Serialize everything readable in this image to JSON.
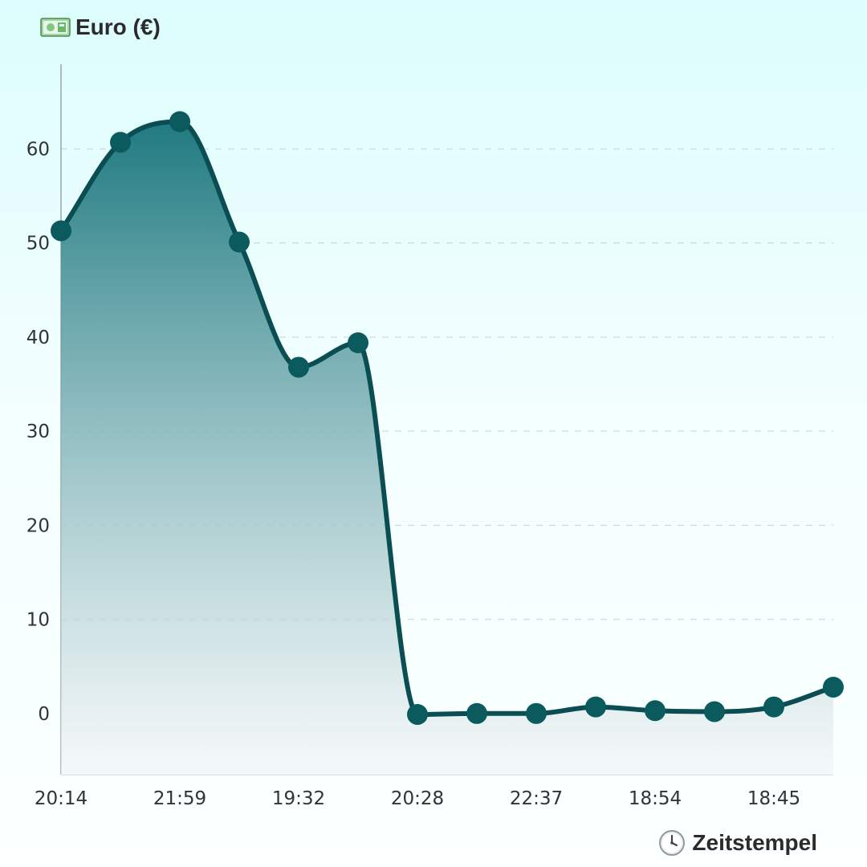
{
  "chart_data": {
    "type": "area",
    "ylabel": "Euro (€)",
    "xlabel": "Zeitstempel",
    "ylabel_icon": "banknote-icon",
    "xlabel_icon": "clock-icon",
    "x": [
      "20:14",
      "",
      "21:59",
      "",
      "19:32",
      "",
      "20:28",
      "",
      "22:37",
      "",
      "18:54",
      "",
      "18:45",
      ""
    ],
    "x_tick_labels": [
      "20:14",
      "21:59",
      "19:32",
      "20:28",
      "22:37",
      "18:54",
      "18:45"
    ],
    "values": [
      51.3,
      60.7,
      62.9,
      50.1,
      36.8,
      39.4,
      -0.1,
      0.0,
      0.0,
      0.7,
      0.3,
      0.2,
      0.7,
      2.8
    ],
    "yticks": [
      0,
      10,
      20,
      30,
      40,
      50,
      60
    ],
    "ylim": [
      -6.5,
      69
    ],
    "grid": "horizontal-dashed",
    "colors": {
      "line": "#0a4d52",
      "marker": "#0a5a5e",
      "fill_top": "#1f7a80",
      "fill_bottom": "#f4f6f8",
      "grid": "#cfd8dc",
      "axis": "#9aa5a8"
    }
  }
}
